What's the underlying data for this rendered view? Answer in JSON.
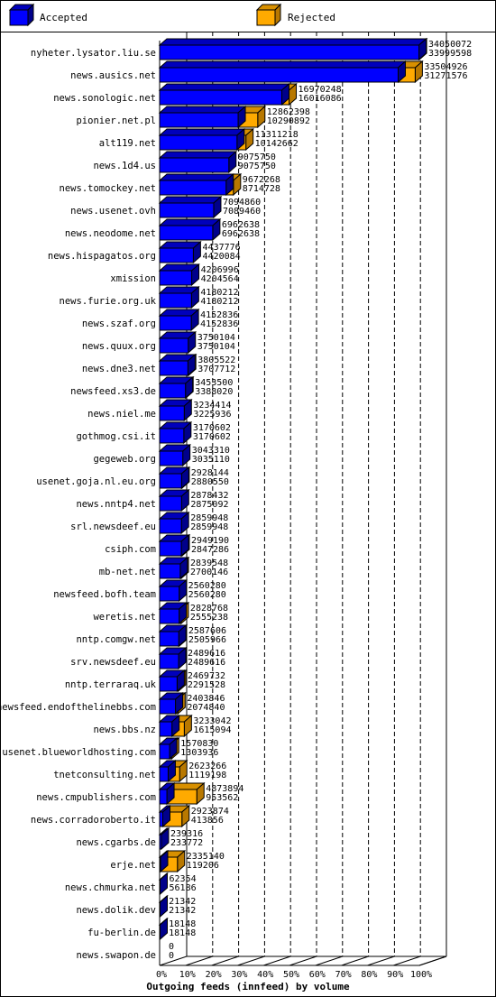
{
  "legend": {
    "accepted": "Accepted",
    "rejected": "Rejected"
  },
  "colors": {
    "accepted_front": "#0000ff",
    "accepted_top": "#0000bb",
    "accepted_side": "#00008b",
    "rejected_front": "#ffaa00",
    "rejected_top": "#d89000",
    "rejected_side": "#b87800",
    "axis": "#000000",
    "grid": "#000000",
    "background": "#ffffff"
  },
  "chart_data": {
    "type": "bar",
    "orientation": "horizontal",
    "stacked": "overlap",
    "xlabel": "Outgoing feeds (innfeed) by volume",
    "xlim": [
      0,
      100
    ],
    "x_unit": "%",
    "x_ticks": [
      "0%",
      "10%",
      "20%",
      "30%",
      "40%",
      "50%",
      "60%",
      "70%",
      "80%",
      "90%",
      "100%"
    ],
    "grid": true,
    "legend_position": "top",
    "series": [
      {
        "name": "Accepted",
        "key": "accepted"
      },
      {
        "name": "Rejected",
        "key": "rejected"
      }
    ],
    "max_value": 34050072,
    "rows": [
      {
        "site": "nyheter.lysator.liu.se",
        "total": 34050072,
        "accepted": 33999598
      },
      {
        "site": "news.ausics.net",
        "total": 33504926,
        "accepted": 31271576
      },
      {
        "site": "news.sonologic.net",
        "total": 16970248,
        "accepted": 16016086
      },
      {
        "site": "pionier.net.pl",
        "total": 12862398,
        "accepted": 10290892
      },
      {
        "site": "alt119.net",
        "total": 11311218,
        "accepted": 10142662
      },
      {
        "site": "news.1d4.us",
        "total": 9075750,
        "accepted": 9075750
      },
      {
        "site": "news.tomockey.net",
        "total": 9672268,
        "accepted": 8714728
      },
      {
        "site": "news.usenet.ovh",
        "total": 7094860,
        "accepted": 7089460
      },
      {
        "site": "news.neodome.net",
        "total": 6962638,
        "accepted": 6962638
      },
      {
        "site": "news.hispagatos.org",
        "total": 4437776,
        "accepted": 4420084
      },
      {
        "site": "xmission",
        "total": 4206996,
        "accepted": 4204564
      },
      {
        "site": "news.furie.org.uk",
        "total": 4180212,
        "accepted": 4180212
      },
      {
        "site": "news.szaf.org",
        "total": 4152836,
        "accepted": 4152836
      },
      {
        "site": "news.quux.org",
        "total": 3750104,
        "accepted": 3750104
      },
      {
        "site": "news.dne3.net",
        "total": 3805522,
        "accepted": 3707712
      },
      {
        "site": "newsfeed.xs3.de",
        "total": 3453500,
        "accepted": 3388020
      },
      {
        "site": "news.niel.me",
        "total": 3234414,
        "accepted": 3225936
      },
      {
        "site": "gothmog.csi.it",
        "total": 3170602,
        "accepted": 3170602
      },
      {
        "site": "gegeweb.org",
        "total": 3043310,
        "accepted": 3035110
      },
      {
        "site": "usenet.goja.nl.eu.org",
        "total": 2928144,
        "accepted": 2880550
      },
      {
        "site": "news.nntp4.net",
        "total": 2878432,
        "accepted": 2875092
      },
      {
        "site": "srl.newsdeef.eu",
        "total": 2859948,
        "accepted": 2859948
      },
      {
        "site": "csiph.com",
        "total": 2949190,
        "accepted": 2847286
      },
      {
        "site": "mb-net.net",
        "total": 2839548,
        "accepted": 2700146
      },
      {
        "site": "newsfeed.bofh.team",
        "total": 2560280,
        "accepted": 2560280
      },
      {
        "site": "weretis.net",
        "total": 2828768,
        "accepted": 2555238
      },
      {
        "site": "nntp.comgw.net",
        "total": 2587606,
        "accepted": 2505966
      },
      {
        "site": "srv.newsdeef.eu",
        "total": 2489616,
        "accepted": 2489616
      },
      {
        "site": "nntp.terraraq.uk",
        "total": 2469732,
        "accepted": 2291528
      },
      {
        "site": "newsfeed.endofthelinebbs.com",
        "total": 2403846,
        "accepted": 2074840
      },
      {
        "site": "news.bbs.nz",
        "total": 3233042,
        "accepted": 1615094
      },
      {
        "site": "usenet.blueworldhosting.com",
        "total": 1570830,
        "accepted": 1303936
      },
      {
        "site": "tnetconsulting.net",
        "total": 2623266,
        "accepted": 1119198
      },
      {
        "site": "news.cmpublishers.com",
        "total": 4873894,
        "accepted": 953562
      },
      {
        "site": "news.corradoroberto.it",
        "total": 2923874,
        "accepted": 413856
      },
      {
        "site": "news.cgarbs.de",
        "total": 239316,
        "accepted": 233772
      },
      {
        "site": "erje.net",
        "total": 2335140,
        "accepted": 119206
      },
      {
        "site": "news.chmurka.net",
        "total": 62354,
        "accepted": 56186
      },
      {
        "site": "news.dolik.dev",
        "total": 21342,
        "accepted": 21342
      },
      {
        "site": "fu-berlin.de",
        "total": 18148,
        "accepted": 18148
      },
      {
        "site": "news.swapon.de",
        "total": 0,
        "accepted": 0
      }
    ]
  }
}
